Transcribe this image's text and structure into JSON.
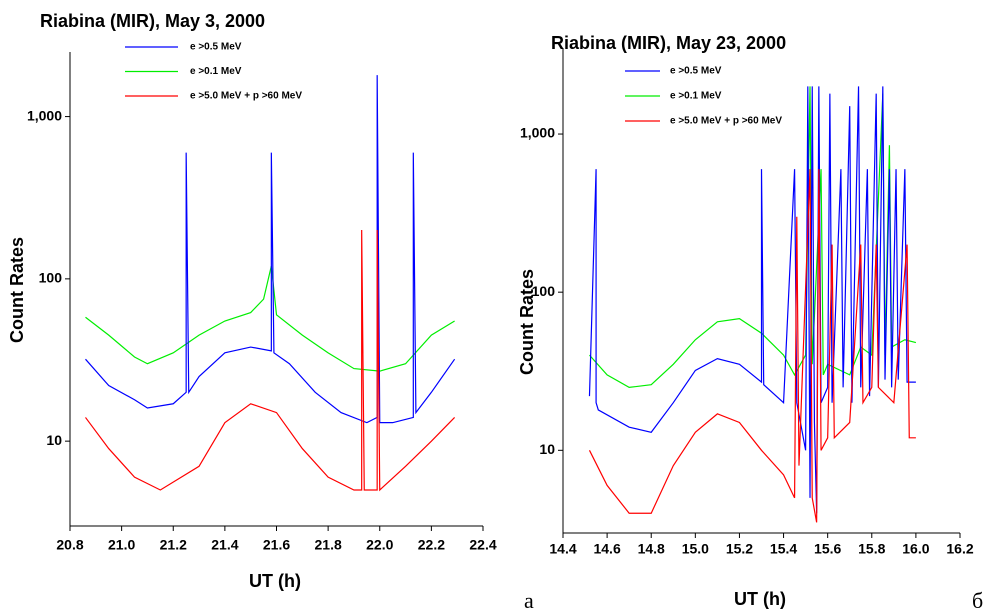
{
  "chart_data": [
    {
      "type": "line",
      "title": "Riabina (MIR), May 3, 2000",
      "x_label": "UT (h)",
      "y_label": "Count Rates",
      "log_y": true,
      "caption": "a",
      "xlim": [
        20.8,
        22.4
      ],
      "xticks": [
        20.8,
        {
          "value": 21,
          "label": "21.0"
        },
        21.2,
        21.4,
        21.6,
        21.8,
        {
          "value": 22,
          "label": "22.0"
        },
        22.2,
        22.4
      ],
      "ylim": [
        3,
        2500
      ],
      "yticks": [
        10,
        100,
        {
          "value": 1000,
          "label": "1,000"
        }
      ],
      "series": [
        {
          "name": "e >0.5 MeV",
          "color": "#0000ff",
          "x": [
            20.86,
            20.95,
            21.05,
            21.1,
            21.2,
            21.25,
            21.25,
            21.26,
            21.3,
            21.4,
            21.5,
            21.58,
            21.58,
            21.59,
            21.65,
            21.75,
            21.85,
            21.95,
            21.99,
            21.99,
            22.0,
            22.05,
            22.13,
            22.13,
            22.14,
            22.2,
            22.29
          ],
          "values": [
            32,
            22,
            18,
            16,
            17,
            20,
            600,
            20,
            25,
            35,
            38,
            36,
            600,
            35,
            30,
            20,
            15,
            13,
            14,
            1800,
            13,
            13,
            14,
            600,
            15,
            20,
            32
          ]
        },
        {
          "name": "e >0.1 MeV",
          "color": "#00ee00",
          "x": [
            20.86,
            20.95,
            21.05,
            21.1,
            21.2,
            21.3,
            21.4,
            21.5,
            21.55,
            21.58,
            21.6,
            21.7,
            21.8,
            21.9,
            22.0,
            22.1,
            22.2,
            22.29
          ],
          "values": [
            58,
            45,
            33,
            30,
            35,
            45,
            55,
            62,
            75,
            120,
            60,
            45,
            35,
            28,
            27,
            30,
            45,
            55
          ]
        },
        {
          "name": "e >5.0 MeV + p >60 MeV",
          "color": "#ff0000",
          "x": [
            20.86,
            20.95,
            21.05,
            21.15,
            21.3,
            21.4,
            21.5,
            21.6,
            21.7,
            21.8,
            21.9,
            21.93,
            21.93,
            21.94,
            21.99,
            21.99,
            22.0,
            22.1,
            22.2,
            22.29
          ],
          "values": [
            14,
            9,
            6,
            5,
            7,
            13,
            17,
            15,
            9,
            6,
            5,
            5,
            200,
            5,
            5,
            200,
            5,
            7,
            10,
            14
          ]
        }
      ]
    },
    {
      "type": "line",
      "title": "Riabina (MIR), May 23, 2000",
      "x_label": "UT (h)",
      "y_label": "Count Rates",
      "log_y": true,
      "caption": "б",
      "xlim": [
        14.4,
        16.2
      ],
      "xticks": [
        14.4,
        14.6,
        14.8,
        {
          "value": 15,
          "label": "15.0"
        },
        15.2,
        15.4,
        15.6,
        15.8,
        {
          "value": 16,
          "label": "16.0"
        },
        16.2
      ],
      "ylim": [
        3,
        3500
      ],
      "yticks": [
        10,
        100,
        {
          "value": 1000,
          "label": "1,000"
        }
      ],
      "series": [
        {
          "name": "e >0.5 MeV",
          "color": "#0000ff",
          "x": [
            14.52,
            14.55,
            14.55,
            14.56,
            14.7,
            14.8,
            14.9,
            15.0,
            15.1,
            15.2,
            15.3,
            15.3,
            15.31,
            15.4,
            15.45,
            15.46,
            15.5,
            15.51,
            15.52,
            15.53,
            15.54,
            15.55,
            15.56,
            15.57,
            15.6,
            15.61,
            15.62,
            15.66,
            15.67,
            15.7,
            15.71,
            15.74,
            15.75,
            15.78,
            15.79,
            15.82,
            15.83,
            15.85,
            15.86,
            15.88,
            15.89,
            15.91,
            15.92,
            15.95,
            15.96,
            16.0
          ],
          "values": [
            22,
            600,
            20,
            18,
            14,
            13,
            20,
            32,
            38,
            35,
            27,
            600,
            26,
            20,
            600,
            20,
            10,
            2000,
            5,
            2000,
            15,
            4,
            2000,
            20,
            25,
            1800,
            20,
            600,
            25,
            1500,
            20,
            2000,
            25,
            600,
            22,
            1800,
            25,
            2000,
            28,
            600,
            25,
            600,
            28,
            600,
            27,
            27
          ]
        },
        {
          "name": "e >0.1 MeV",
          "color": "#00ee00",
          "x": [
            14.52,
            14.6,
            14.7,
            14.8,
            14.9,
            15.0,
            15.1,
            15.2,
            15.3,
            15.4,
            15.45,
            15.5,
            15.52,
            15.53,
            15.57,
            15.58,
            15.6,
            15.7,
            15.75,
            15.8,
            15.85,
            15.86,
            15.88,
            15.89,
            15.95,
            16.0
          ],
          "values": [
            40,
            30,
            25,
            26,
            35,
            50,
            65,
            68,
            55,
            40,
            30,
            40,
            2000,
            35,
            600,
            30,
            35,
            30,
            45,
            40,
            1800,
            40,
            850,
            45,
            50,
            48
          ]
        },
        {
          "name": "e >5.0 MeV + p >60 MeV",
          "color": "#ff0000",
          "x": [
            14.52,
            14.6,
            14.7,
            14.8,
            14.9,
            15.0,
            15.1,
            15.2,
            15.3,
            15.4,
            15.45,
            15.46,
            15.47,
            15.52,
            15.53,
            15.55,
            15.56,
            15.57,
            15.6,
            15.62,
            15.63,
            15.7,
            15.75,
            15.76,
            15.8,
            15.82,
            15.83,
            15.9,
            15.96,
            15.97,
            16.0
          ],
          "values": [
            10,
            6,
            4,
            4,
            8,
            13,
            17,
            15,
            10,
            7,
            5,
            300,
            8,
            600,
            5,
            3.5,
            600,
            10,
            12,
            200,
            12,
            15,
            200,
            20,
            25,
            200,
            25,
            20,
            200,
            12,
            12
          ]
        }
      ]
    }
  ]
}
